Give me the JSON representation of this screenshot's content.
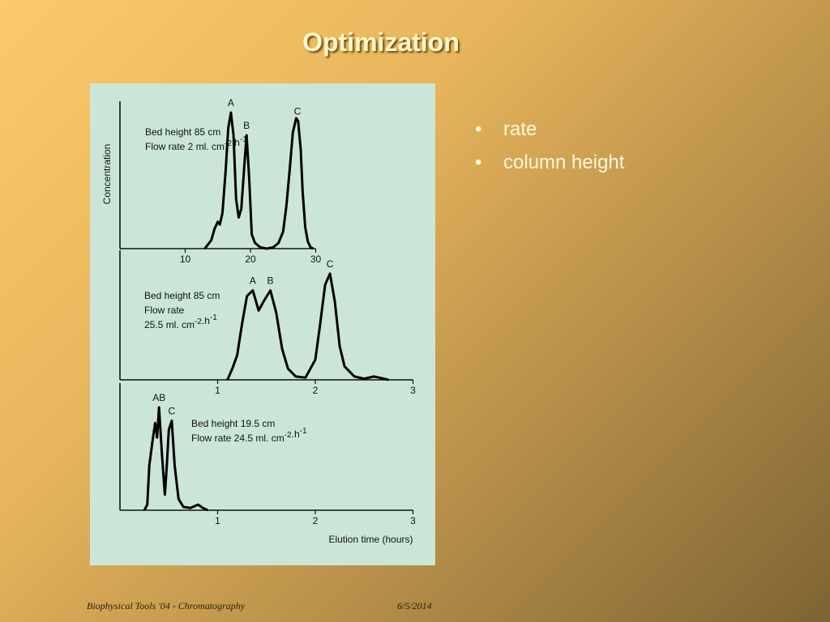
{
  "slide": {
    "title": "Optimization",
    "bullets": [
      "rate",
      "column height"
    ],
    "bullet_glyph": "•",
    "footer_left": "Biophysical Tools '04 - Chromatography",
    "footer_right": "6/5/2014",
    "colors": {
      "title": "#fff8c8",
      "figure_bg": "#cbe6d9",
      "curve": "#000000"
    }
  },
  "chart_data": [
    {
      "type": "line",
      "ylabel": "Concentration",
      "xlabel": "",
      "xlim": [
        0,
        30
      ],
      "xticks": [
        10,
        20,
        30
      ],
      "annotation": [
        "Bed height 85 cm",
        "Flow rate 2 ml. cm-2.h-1"
      ],
      "peaks": [
        {
          "label": "A",
          "x": 17.0
        },
        {
          "label": "B",
          "x": 19.4
        },
        {
          "label": "C",
          "x": 27.2
        }
      ],
      "x": [
        13,
        14,
        14.5,
        15,
        15.3,
        15.7,
        16.2,
        16.6,
        17.0,
        17.4,
        17.8,
        18.2,
        18.6,
        19.0,
        19.4,
        19.8,
        20.2,
        20.7,
        21.5,
        22.5,
        23.5,
        24.3,
        25.0,
        25.5,
        26.0,
        26.5,
        27.0,
        27.3,
        27.7,
        28.0,
        28.4,
        28.8,
        29.2,
        29.6
      ],
      "y": [
        0,
        0.06,
        0.14,
        0.19,
        0.17,
        0.25,
        0.55,
        0.85,
        0.96,
        0.8,
        0.35,
        0.22,
        0.28,
        0.55,
        0.8,
        0.5,
        0.1,
        0.04,
        0.01,
        0,
        0.01,
        0.04,
        0.12,
        0.3,
        0.55,
        0.82,
        0.92,
        0.9,
        0.7,
        0.4,
        0.15,
        0.05,
        0.01,
        0
      ]
    },
    {
      "type": "line",
      "xlabel": "",
      "xlim": [
        0,
        3
      ],
      "xticks": [
        1,
        2,
        3
      ],
      "annotation": [
        "Bed height 85 cm",
        "Flow rate",
        "25.5 ml. cm-2.h-1"
      ],
      "peaks": [
        {
          "label": "A",
          "x": 1.36
        },
        {
          "label": "B",
          "x": 1.54
        },
        {
          "label": "C",
          "x": 2.15
        }
      ],
      "x": [
        1.1,
        1.15,
        1.2,
        1.25,
        1.3,
        1.36,
        1.42,
        1.47,
        1.54,
        1.6,
        1.66,
        1.72,
        1.8,
        1.9,
        2.0,
        2.05,
        2.1,
        2.15,
        2.2,
        2.25,
        2.3,
        2.4,
        2.5,
        2.6,
        2.65,
        2.7,
        2.75
      ],
      "y": [
        0,
        0.1,
        0.22,
        0.5,
        0.75,
        0.8,
        0.62,
        0.7,
        0.8,
        0.6,
        0.28,
        0.1,
        0.03,
        0.02,
        0.18,
        0.5,
        0.85,
        0.95,
        0.7,
        0.3,
        0.12,
        0.03,
        0.01,
        0.03,
        0.02,
        0.01,
        0
      ]
    },
    {
      "type": "line",
      "xlabel": "Elution time (hours)",
      "xlim": [
        0,
        3
      ],
      "xticks": [
        1,
        2,
        3
      ],
      "annotation": [
        "Bed height 19.5 cm",
        "Flow rate 24.5 ml. cm-2.h-1"
      ],
      "peaks": [
        {
          "label": "AB",
          "x": 0.4
        },
        {
          "label": "C",
          "x": 0.53
        }
      ],
      "x": [
        0.25,
        0.28,
        0.3,
        0.33,
        0.36,
        0.38,
        0.4,
        0.43,
        0.46,
        0.48,
        0.5,
        0.53,
        0.56,
        0.6,
        0.65,
        0.72,
        0.8,
        0.85,
        0.9
      ],
      "y": [
        0,
        0.05,
        0.4,
        0.6,
        0.78,
        0.65,
        0.92,
        0.5,
        0.14,
        0.4,
        0.72,
        0.8,
        0.4,
        0.1,
        0.03,
        0.02,
        0.05,
        0.02,
        0
      ]
    }
  ]
}
